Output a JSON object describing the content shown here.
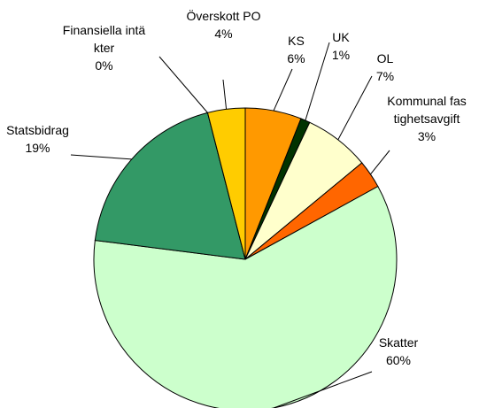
{
  "chart_data": {
    "type": "pie",
    "categories": [
      "KS",
      "UK",
      "OL",
      "Kommunal fastighetsavgift",
      "Skatter",
      "Statsbidrag",
      "Finansiella intäkter",
      "Överskott PO"
    ],
    "values": [
      6,
      1,
      7,
      3,
      60,
      19,
      0,
      4
    ],
    "value_labels": [
      "6%",
      "1%",
      "7%",
      "3%",
      "60%",
      "19%",
      "0%",
      "4%"
    ],
    "colors": [
      "#ff9900",
      "#003300",
      "#ffffcc",
      "#ff6600",
      "#ccffcc",
      "#339966",
      "#003300",
      "#ffcc00"
    ]
  }
}
